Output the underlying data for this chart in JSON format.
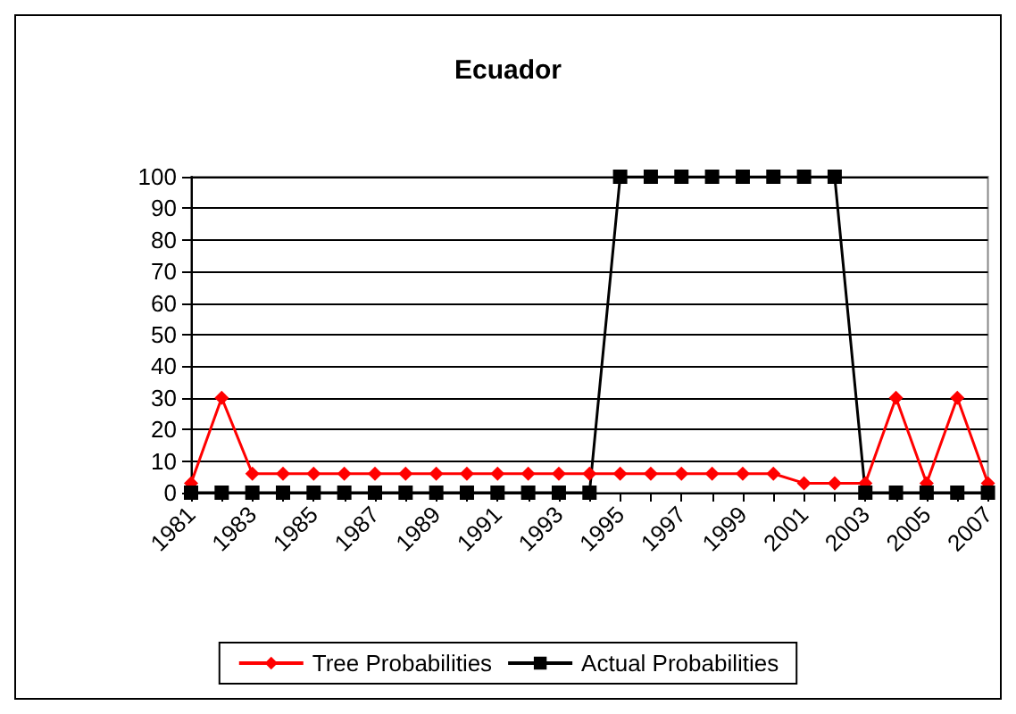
{
  "chart_data": {
    "type": "line",
    "title": "Ecuador",
    "categories": [
      "1981",
      null,
      "1983",
      null,
      "1985",
      null,
      "1987",
      null,
      "1989",
      null,
      "1991",
      null,
      "1993",
      null,
      "1995",
      null,
      "1997",
      null,
      "1999",
      null,
      "2001",
      null,
      "2003",
      null,
      "2005",
      null,
      "2007"
    ],
    "series": [
      {
        "name": "Tree Probabilities",
        "color": "#ff0000",
        "marker": "diamond",
        "values": [
          3,
          30,
          6,
          6,
          6,
          6,
          6,
          6,
          6,
          6,
          6,
          6,
          6,
          6,
          6,
          6,
          6,
          6,
          6,
          6,
          3,
          3,
          3,
          30,
          3,
          30,
          3
        ]
      },
      {
        "name": "Actual Probabilities",
        "color": "#000000",
        "marker": "square",
        "values": [
          0,
          0,
          0,
          0,
          0,
          0,
          0,
          0,
          0,
          0,
          0,
          0,
          0,
          0,
          100,
          100,
          100,
          100,
          100,
          100,
          100,
          100,
          0,
          0,
          0,
          0,
          0
        ]
      }
    ],
    "ylim": [
      0,
      100
    ],
    "yticks": [
      0,
      10,
      20,
      30,
      40,
      50,
      60,
      70,
      80,
      90,
      100
    ],
    "grid": "y",
    "legend": "bottom",
    "line_style": "solid"
  }
}
